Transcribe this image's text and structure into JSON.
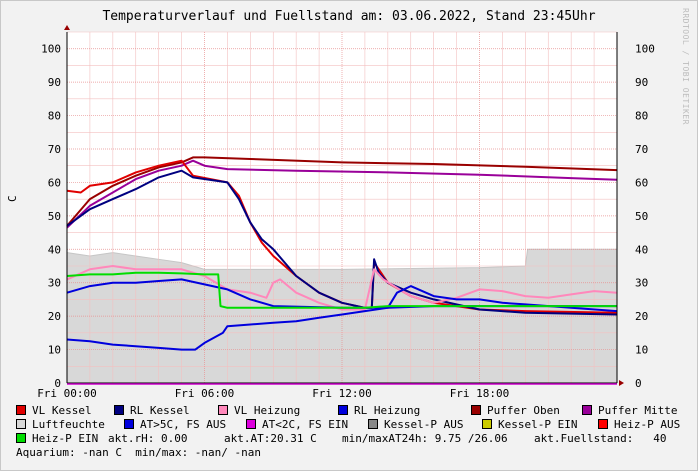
{
  "header": {
    "title": "Temperaturverlauf und Fuellstand am: 03.06.2022, Stand 23:45Uhr",
    "watermark": "RRDTOOL / TOBI OETIKER"
  },
  "chart_data": {
    "type": "line",
    "title": "Temperaturverlauf und Fuellstand am: 03.06.2022, Stand 23:45Uhr",
    "ylabel": "C",
    "ylim": [
      0,
      105
    ],
    "xlim": [
      0,
      24
    ],
    "y_ticks": [
      "0",
      "10",
      "20",
      "30",
      "40",
      "50",
      "60",
      "70",
      "80",
      "90",
      "100"
    ],
    "x_ticks": [
      {
        "x": 0,
        "label": "Fri 00:00"
      },
      {
        "x": 6,
        "label": "Fri 06:00"
      },
      {
        "x": 12,
        "label": "Fri 12:00"
      },
      {
        "x": 18,
        "label": "Fri 18:00"
      }
    ],
    "grid": true,
    "area": {
      "name": "Luftfeuchte",
      "color": "#d8d8d8",
      "points": [
        [
          0,
          39
        ],
        [
          1,
          38
        ],
        [
          2,
          39
        ],
        [
          3,
          38
        ],
        [
          4,
          37
        ],
        [
          5,
          36
        ],
        [
          5.5,
          35
        ],
        [
          6,
          34
        ],
        [
          8,
          34
        ],
        [
          12,
          34
        ],
        [
          18,
          34.5
        ],
        [
          20,
          35
        ],
        [
          20.1,
          40
        ],
        [
          24,
          40
        ]
      ]
    },
    "series": [
      {
        "name": "Puffer Oben",
        "color": "#990000",
        "points": [
          [
            0,
            47
          ],
          [
            1,
            55
          ],
          [
            2,
            59
          ],
          [
            3,
            62
          ],
          [
            4,
            64.5
          ],
          [
            5,
            66
          ],
          [
            5.5,
            67.5
          ],
          [
            6,
            67.5
          ],
          [
            8,
            67
          ],
          [
            12,
            66
          ],
          [
            16,
            65.5
          ],
          [
            20,
            64.7
          ],
          [
            24,
            63.7
          ]
        ]
      },
      {
        "name": "Puffer Mitte",
        "color": "#990099",
        "points": [
          [
            0,
            46.5
          ],
          [
            1,
            53
          ],
          [
            2,
            57
          ],
          [
            3,
            61
          ],
          [
            4,
            63.5
          ],
          [
            5,
            65
          ],
          [
            5.5,
            66.5
          ],
          [
            6,
            65
          ],
          [
            7,
            64
          ],
          [
            10,
            63.5
          ],
          [
            14,
            63
          ],
          [
            18,
            62.3
          ],
          [
            22,
            61.3
          ],
          [
            24,
            60.8
          ]
        ]
      },
      {
        "name": "VL Kessel",
        "color": "#e00000",
        "points": [
          [
            0,
            57.5
          ],
          [
            0.6,
            57
          ],
          [
            1,
            59
          ],
          [
            2,
            60
          ],
          [
            3,
            63
          ],
          [
            4,
            65
          ],
          [
            5,
            66.5
          ],
          [
            5.5,
            62
          ],
          [
            7,
            60
          ],
          [
            7.5,
            56
          ],
          [
            8,
            48
          ],
          [
            8.5,
            42
          ],
          [
            9,
            38
          ],
          [
            10,
            32
          ],
          [
            11,
            27
          ],
          [
            12,
            24
          ],
          [
            13,
            22.5
          ],
          [
            13.3,
            22.5
          ],
          [
            13.4,
            36
          ],
          [
            13.6,
            34
          ],
          [
            14,
            30
          ],
          [
            15,
            26
          ],
          [
            16,
            24
          ],
          [
            18,
            22
          ],
          [
            20,
            21.5
          ],
          [
            24,
            21
          ]
        ]
      },
      {
        "name": "RL Kessel",
        "color": "#000080",
        "points": [
          [
            0,
            47
          ],
          [
            1,
            52
          ],
          [
            2,
            55
          ],
          [
            3,
            58
          ],
          [
            4,
            61.5
          ],
          [
            5,
            63.5
          ],
          [
            5.5,
            61.5
          ],
          [
            7,
            60
          ],
          [
            7.5,
            55
          ],
          [
            8,
            48
          ],
          [
            8.5,
            43
          ],
          [
            9,
            40
          ],
          [
            10,
            32
          ],
          [
            11,
            27
          ],
          [
            12,
            24
          ],
          [
            13,
            22.5
          ],
          [
            13.3,
            22.5
          ],
          [
            13.4,
            37
          ],
          [
            13.6,
            33
          ],
          [
            14,
            30
          ],
          [
            15,
            27
          ],
          [
            16,
            25
          ],
          [
            18,
            22
          ],
          [
            20,
            21
          ],
          [
            24,
            20.5
          ]
        ]
      },
      {
        "name": "VL Heizung",
        "color": "#ff88bb",
        "points": [
          [
            0,
            31
          ],
          [
            1,
            34
          ],
          [
            2,
            35
          ],
          [
            3,
            34
          ],
          [
            4,
            34
          ],
          [
            5,
            34
          ],
          [
            6,
            32
          ],
          [
            7,
            28
          ],
          [
            8,
            27
          ],
          [
            8.7,
            25.5
          ],
          [
            9,
            30
          ],
          [
            9.3,
            31
          ],
          [
            10,
            27
          ],
          [
            11,
            24
          ],
          [
            12,
            22
          ],
          [
            13,
            22
          ],
          [
            13.4,
            34
          ],
          [
            13.8,
            31
          ],
          [
            14.5,
            28
          ],
          [
            15,
            26
          ],
          [
            16,
            24
          ],
          [
            17,
            25.5
          ],
          [
            18,
            28
          ],
          [
            19,
            27.5
          ],
          [
            20,
            26
          ],
          [
            21,
            25.5
          ],
          [
            22,
            26.5
          ],
          [
            23,
            27.5
          ],
          [
            24,
            27
          ]
        ]
      },
      {
        "name": "RL Heizung",
        "color": "#0000dd",
        "points": [
          [
            0,
            27
          ],
          [
            1,
            29
          ],
          [
            2,
            30
          ],
          [
            3,
            30
          ],
          [
            4,
            30.5
          ],
          [
            5,
            31
          ],
          [
            6,
            29.5
          ],
          [
            7,
            28
          ],
          [
            8,
            25
          ],
          [
            9,
            23
          ],
          [
            12,
            22.5
          ],
          [
            14,
            22.5
          ],
          [
            14.4,
            27
          ],
          [
            15,
            29
          ],
          [
            16,
            26
          ],
          [
            17,
            25
          ],
          [
            18,
            25
          ],
          [
            19,
            24
          ],
          [
            20,
            23.5
          ],
          [
            24,
            21.5
          ]
        ]
      },
      {
        "name": "AT>5C, FS AUS",
        "color": "#0000dd",
        "points": [
          [
            0,
            13
          ],
          [
            1,
            12.5
          ],
          [
            2,
            11.5
          ],
          [
            3,
            11
          ],
          [
            4,
            10.5
          ],
          [
            5,
            10
          ],
          [
            5.6,
            10
          ],
          [
            6,
            12
          ],
          [
            6.8,
            15
          ],
          [
            7,
            17
          ],
          [
            8,
            17.5
          ],
          [
            9,
            18
          ],
          [
            10,
            18.5
          ],
          [
            11,
            19.5
          ],
          [
            12,
            20.5
          ],
          [
            13,
            21.5
          ],
          [
            14,
            22.5
          ],
          [
            16,
            23
          ],
          [
            20,
            23
          ],
          [
            24,
            23
          ]
        ]
      },
      {
        "name": "Heiz-P EIN",
        "color": "#00dd00",
        "points": [
          [
            0,
            32
          ],
          [
            1,
            32.5
          ],
          [
            2,
            32.5
          ],
          [
            3,
            33
          ],
          [
            4,
            33
          ],
          [
            5,
            32.8
          ],
          [
            6,
            32.5
          ],
          [
            6.6,
            32.5
          ],
          [
            6.7,
            23
          ],
          [
            7,
            22.5
          ],
          [
            10,
            22.5
          ],
          [
            13,
            22.5
          ],
          [
            14,
            23
          ],
          [
            18,
            23
          ],
          [
            22,
            23
          ],
          [
            24,
            23
          ]
        ]
      }
    ]
  },
  "legend": {
    "items": [
      {
        "label": "VL Kessel",
        "color": "#e00000"
      },
      {
        "label": "RL Kessel",
        "color": "#000080"
      },
      {
        "label": "VL Heizung",
        "color": "#ff88bb"
      },
      {
        "label": "RL Heizung",
        "color": "#0000dd"
      },
      {
        "label": "Puffer Oben",
        "color": "#990000"
      },
      {
        "label": "Puffer Mitte",
        "color": "#990099"
      },
      {
        "label": "Luftfeuchte",
        "color": "#d8d8d8"
      },
      {
        "label": "AT>5C, FS AUS",
        "color": "#0000dd"
      },
      {
        "label": "AT<2C, FS EIN",
        "color": "#dd00dd"
      },
      {
        "label": "Kessel-P AUS",
        "color": "#888888"
      },
      {
        "label": "Kessel-P EIN",
        "color": "#cccc00"
      },
      {
        "label": "Heiz-P AUS",
        "color": "#ff0000"
      },
      {
        "label": "Heiz-P EIN",
        "color": "#00dd00"
      }
    ],
    "stats": {
      "rh": "akt.rH: 0.00",
      "at": "akt.AT:20.31 C",
      "minmax24": "min/maxAT24h: 9.75 /26.06",
      "fuellstand": "akt.Fuellstand:   40",
      "aquarium": "Aquarium: -nan C  min/max: -nan/ -nan"
    }
  }
}
